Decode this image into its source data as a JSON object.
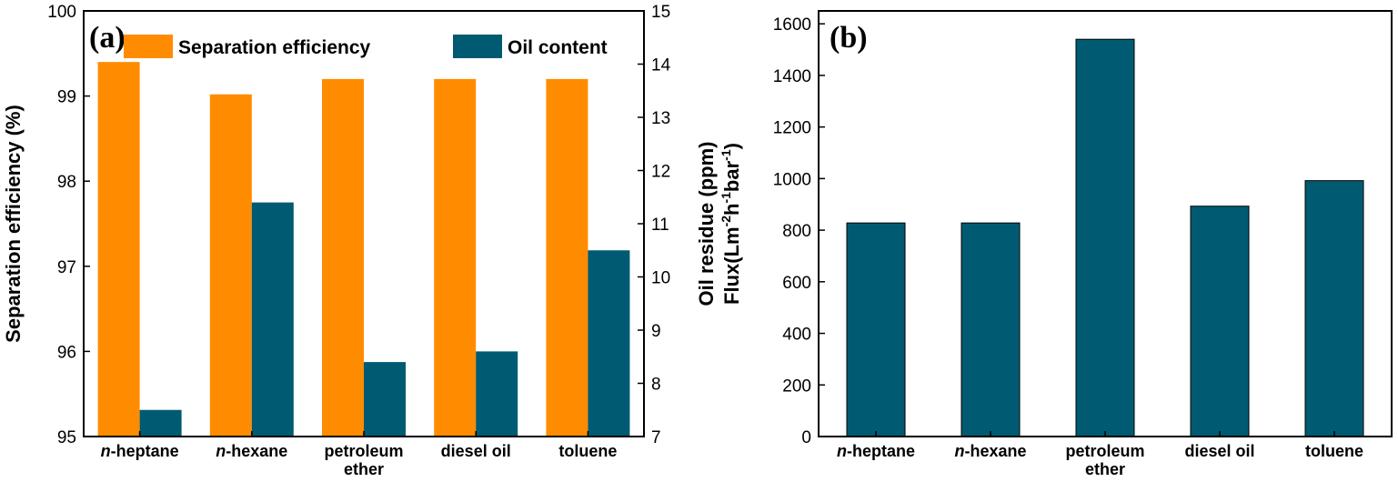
{
  "colors": {
    "orange": "#ff8c00",
    "teal": "#005b72",
    "axis": "#000000"
  },
  "chart_data": [
    {
      "panel_label": "(a)",
      "type": "bar",
      "categories": [
        "n-heptane",
        "n-hexane",
        "petroleum ether",
        "diesel oil",
        "toluene"
      ],
      "category_display": [
        {
          "italic": "n",
          "rest": "-heptane",
          "line2": ""
        },
        {
          "italic": "n",
          "rest": "-hexane",
          "line2": ""
        },
        {
          "italic": "",
          "rest": "petroleum",
          "line2": "ether"
        },
        {
          "italic": "",
          "rest": "diesel oil",
          "line2": ""
        },
        {
          "italic": "",
          "rest": "toluene",
          "line2": ""
        }
      ],
      "series": [
        {
          "name": "Separation efficiency",
          "axis": "left",
          "color": "#ff8c00",
          "values": [
            99.4,
            99.02,
            99.2,
            99.2,
            99.2
          ]
        },
        {
          "name": "Oil content",
          "axis": "right",
          "color": "#005b72",
          "values": [
            7.5,
            11.4,
            8.4,
            8.6,
            10.5
          ]
        }
      ],
      "ylabel": "Separation efficiency (%)",
      "ylim": [
        95,
        100
      ],
      "yticks": [
        95,
        96,
        97,
        98,
        99,
        100
      ],
      "y2label": "Oil residue (ppm)",
      "y2lim": [
        7,
        15
      ],
      "y2ticks": [
        7,
        8,
        9,
        10,
        11,
        12,
        13,
        14,
        15
      ],
      "legend_position": "top"
    },
    {
      "panel_label": "(b)",
      "type": "bar",
      "categories": [
        "n-heptane",
        "n-hexane",
        "petroleum ether",
        "diesel oil",
        "toluene"
      ],
      "category_display": [
        {
          "italic": "n",
          "rest": "-heptane",
          "line2": ""
        },
        {
          "italic": "n",
          "rest": "-hexane",
          "line2": ""
        },
        {
          "italic": "",
          "rest": "petroleum",
          "line2": "ether"
        },
        {
          "italic": "",
          "rest": "diesel oil",
          "line2": ""
        },
        {
          "italic": "",
          "rest": "toluene",
          "line2": ""
        }
      ],
      "series": [
        {
          "color": "#005b72",
          "values": [
            828,
            828,
            1540,
            893,
            992
          ]
        }
      ],
      "ylabel_parts": {
        "base": "Flux(Lm",
        "sup1": "-2",
        "mid1": "h",
        "sup2": "-1",
        "mid2": "bar",
        "sup3": "-1",
        "end": ")"
      },
      "ylim": [
        0,
        1650
      ],
      "yticks": [
        0,
        200,
        400,
        600,
        800,
        1000,
        1200,
        1400,
        1600
      ]
    }
  ]
}
